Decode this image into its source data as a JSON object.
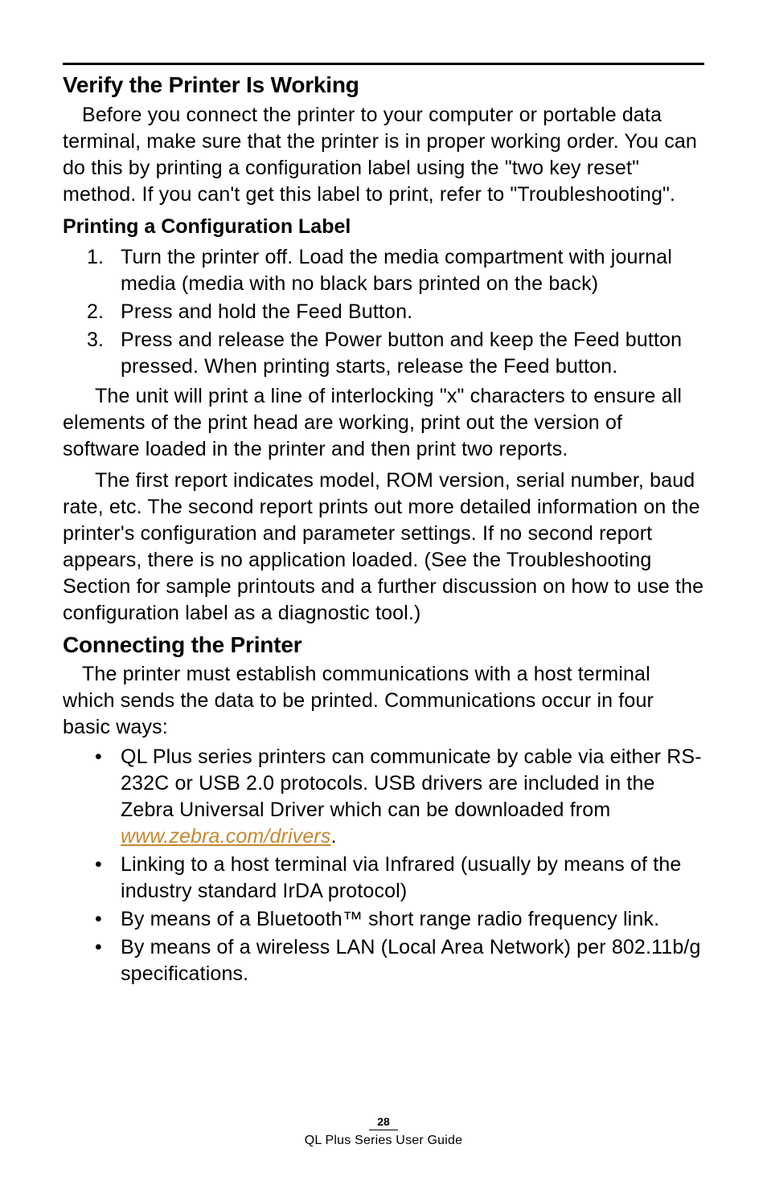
{
  "section1": {
    "heading": "Verify the Printer Is Working",
    "para1": "Before you connect the printer to your computer or portable data terminal, make sure that the printer is in proper working order.  You can do this by printing a configuration label using the \"two key reset\" method.  If you can't get this label to print, refer to \"Troubleshooting\".",
    "subheading": "Printing a Configuration Label",
    "steps": [
      "Turn the printer off.  Load the media compartment with journal media (media with no black bars printed on the back)",
      "Press and hold the Feed Button.",
      "Press and release the Power button and keep the Feed button pressed.  When printing starts, release the Feed button."
    ],
    "para2": "The unit will print a line of interlocking \"x\" characters to ensure all elements of the print head are working, print out the version of software loaded in the printer and then print two reports.",
    "para3": "The first report indicates model, ROM version, serial number, baud rate, etc.    The second report prints out more detailed information on the printer's configuration and parameter settings.  If no second report appears, there is no application loaded. (See the Troubleshooting Section for sample printouts and a further discussion on how to use the configuration label as a diagnostic tool.)"
  },
  "section2": {
    "heading": "Connecting the Printer",
    "para1": "The printer must establish communications with a host terminal which sends the data to be printed.  Communications occur in four basic ways:",
    "bullets": {
      "b1_pre": "QL Plus series printers can communicate by cable via either RS-232C or USB 2.0 protocols. USB drivers are included in the Zebra Universal Driver which can be downloaded from ",
      "b1_link": "www.zebra.com/drivers",
      "b1_post": ".",
      "b2": "Linking to a host terminal via Infrared (usually by means of the industry standard IrDA protocol)",
      "b3": "By means of a Bluetooth™ short range radio frequency link.",
      "b4": "By means of a wireless LAN (Local Area Network) per 802.11b/g specifications."
    }
  },
  "footer": {
    "page": "28",
    "guide": "QL Plus Series User Guide"
  },
  "link_color": "#c7872f"
}
